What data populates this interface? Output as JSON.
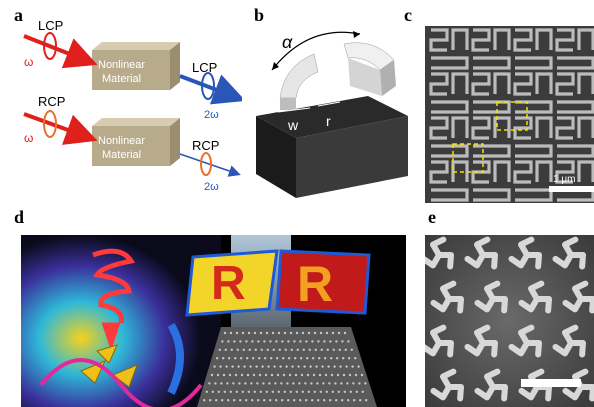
{
  "panels": {
    "a": {
      "label": "a",
      "top_beam_in": "LCP",
      "top_freq_in": "ω",
      "top_block": [
        "Nonlinear",
        "Material"
      ],
      "top_beam_out": "LCP",
      "top_freq_out": "2ω",
      "bottom_beam_in": "RCP",
      "bottom_freq_in": "ω",
      "bottom_block": [
        "Nonlinear",
        "Material"
      ],
      "bottom_beam_out": "RCP",
      "bottom_freq_out": "2ω"
    },
    "b": {
      "label": "b",
      "angle": "α",
      "width": "w",
      "radius": "r"
    },
    "c": {
      "label": "c",
      "scalebar": "1 μm"
    },
    "d": {
      "label": "d",
      "letter": "R"
    },
    "e": {
      "label": "e"
    }
  },
  "colors": {
    "red_beam": "#e0201c",
    "orange_beam": "#e8702a",
    "blue_beam": "#2a56b8",
    "block": "#b8ab8c",
    "dashed_box": "#f2e400"
  }
}
